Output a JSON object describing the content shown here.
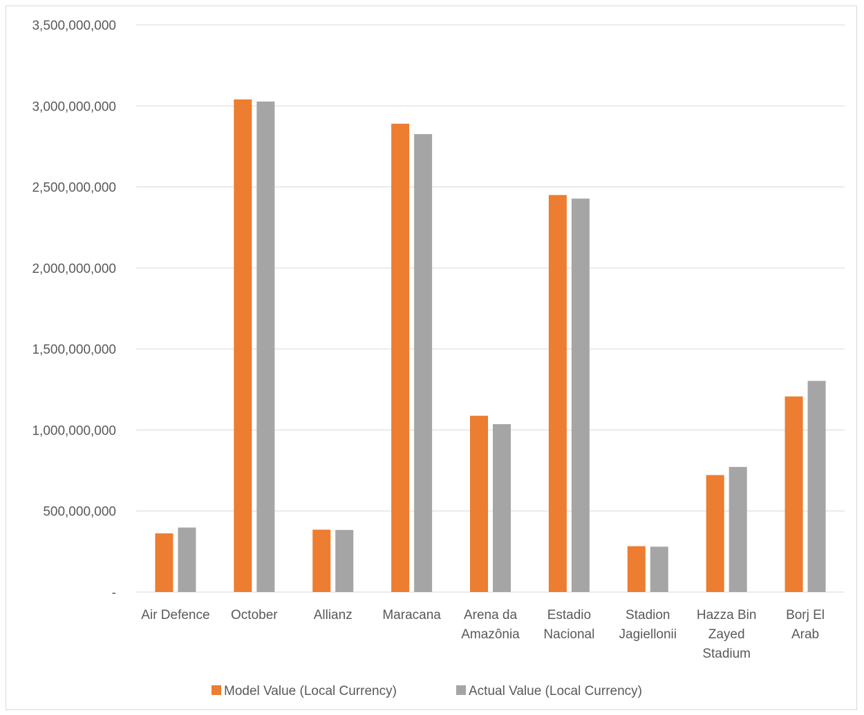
{
  "chart_data": {
    "type": "bar",
    "title": "",
    "xlabel": "",
    "ylabel": "",
    "categories": [
      [
        "Air Defence"
      ],
      [
        "October"
      ],
      [
        "Allianz"
      ],
      [
        "Maracana"
      ],
      [
        "Arena da",
        "Amazônia"
      ],
      [
        "Estadio",
        "Nacional"
      ],
      [
        "Stadion",
        "Jagiellonii"
      ],
      [
        "Hazza Bin",
        "Zayed",
        "Stadium"
      ],
      [
        "Borj El",
        "Arab"
      ]
    ],
    "series": [
      {
        "name": "Model Value (Local Currency)",
        "color": "#ed7d31",
        "values": [
          362000000,
          3040000000,
          385000000,
          2890000000,
          1088000000,
          2450000000,
          283000000,
          722000000,
          1207000000
        ]
      },
      {
        "name": "Actual Value (Local Currency)",
        "color": "#a5a5a5",
        "values": [
          398000000,
          3027000000,
          383000000,
          2826000000,
          1036000000,
          2428000000,
          280000000,
          772000000,
          1303000000
        ]
      }
    ],
    "ylim": [
      0,
      3500000000
    ],
    "yticks": [
      0,
      500000000,
      1000000000,
      1500000000,
      2000000000,
      2500000000,
      3000000000,
      3500000000
    ],
    "ytick_labels": [
      "-",
      "500,000,000",
      "1,000,000,000",
      "1,500,000,000",
      "2,000,000,000",
      "2,500,000,000",
      "3,000,000,000",
      "3,500,000,000"
    ],
    "grid": true,
    "legend_position": "bottom",
    "gridline_color": "#d9d9d9"
  }
}
